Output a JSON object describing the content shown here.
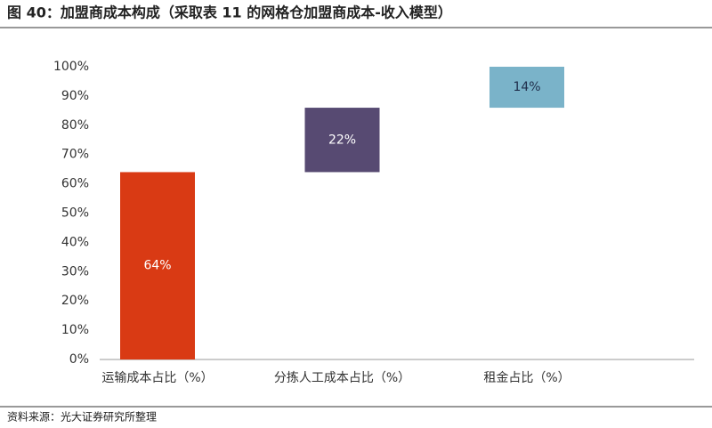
{
  "chart_data": {
    "type": "waterfall",
    "title": "图 40：加盟商成本构成（采取表 11 的网格仓加盟商成本-收入模型）",
    "source": "资料来源：光大证券研究所整理",
    "categories": [
      "运输成本占比（%）",
      "分拣人工成本占比（%）",
      "租金占比（%）"
    ],
    "values": [
      64,
      22,
      14
    ],
    "value_labels": [
      "64%",
      "22%",
      "14%"
    ],
    "colors": [
      "#d93a14",
      "#574a72",
      "#7ab3c9"
    ],
    "ylim": [
      0,
      100
    ],
    "yticks": [
      {
        "value": 0,
        "label": "0%"
      },
      {
        "value": 10,
        "label": "10%"
      },
      {
        "value": 20,
        "label": "20%"
      },
      {
        "value": 30,
        "label": "30%"
      },
      {
        "value": 40,
        "label": "40%"
      },
      {
        "value": 50,
        "label": "50%"
      },
      {
        "value": 60,
        "label": "60%"
      },
      {
        "value": 70,
        "label": "70%"
      },
      {
        "value": 80,
        "label": "80%"
      },
      {
        "value": 90,
        "label": "90%"
      },
      {
        "value": 100,
        "label": "100%"
      }
    ],
    "grid": false
  }
}
